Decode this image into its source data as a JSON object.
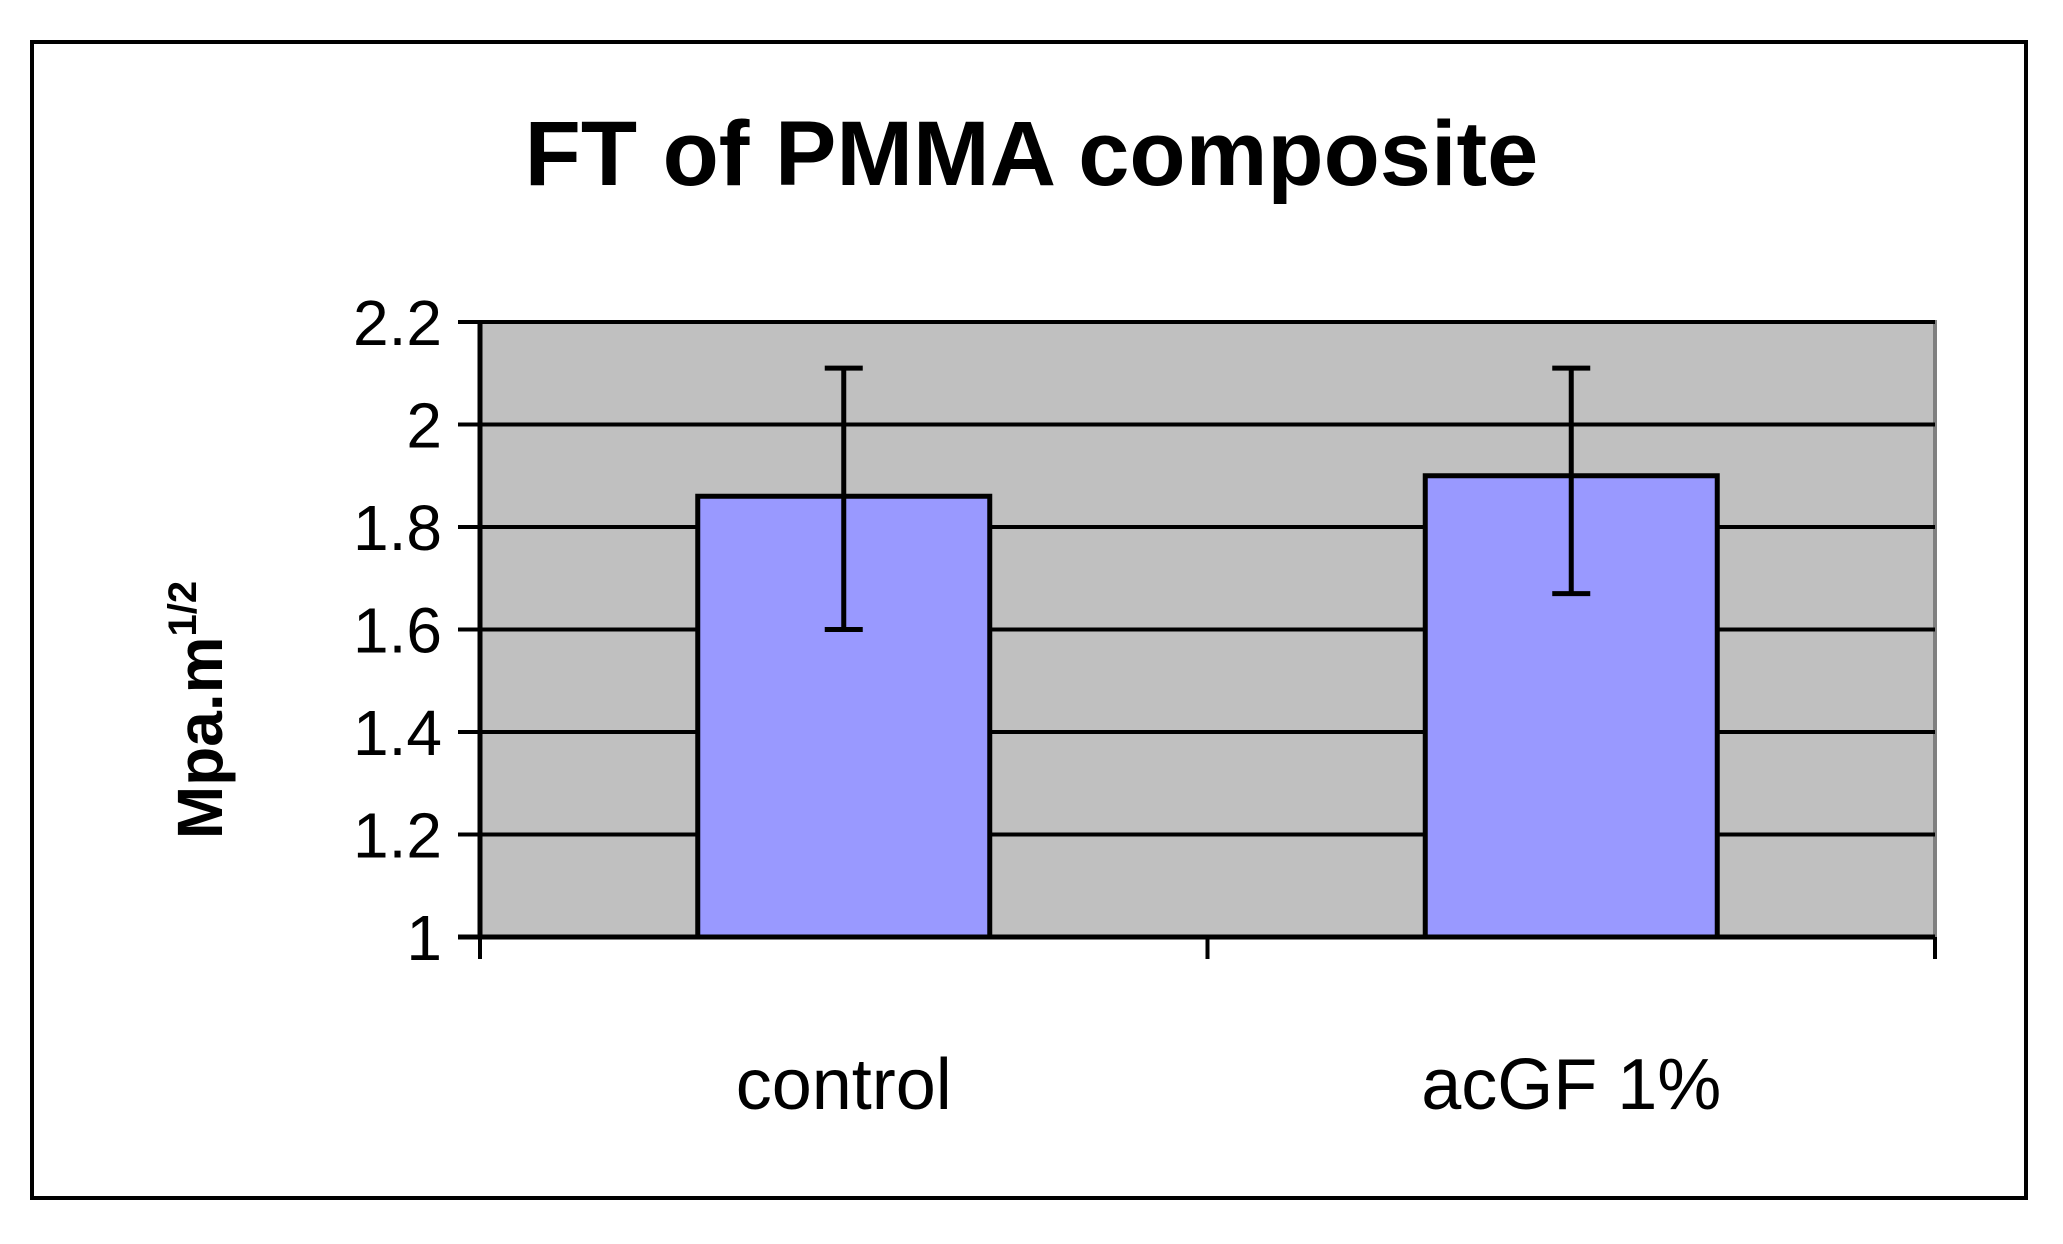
{
  "chart_data": {
    "type": "bar",
    "title": "FT of PMMA composite",
    "xlabel": "",
    "ylabel": "Mpa.m",
    "ylabel_superscript": "1/2",
    "categories": [
      "control",
      "acGF 1%"
    ],
    "series": [
      {
        "values": [
          1.86,
          1.9
        ],
        "error_low": [
          1.6,
          1.67
        ],
        "error_high": [
          2.11,
          2.11
        ]
      }
    ],
    "ylim": [
      1,
      2.2
    ],
    "yticks": [
      1,
      1.2,
      1.4,
      1.6,
      1.8,
      2,
      2.2
    ],
    "ytick_labels": [
      "1",
      "1.2",
      "1.4",
      "1.6",
      "1.8",
      "2",
      "2.2"
    ],
    "grid": "horizontal major gridlines",
    "legend": "none",
    "colors": {
      "bar_fill": "#9999ff",
      "bar_stroke": "#000000",
      "plot_background": "#c0c0c0",
      "gridline": "#000000",
      "error_bar": "#000000"
    }
  }
}
